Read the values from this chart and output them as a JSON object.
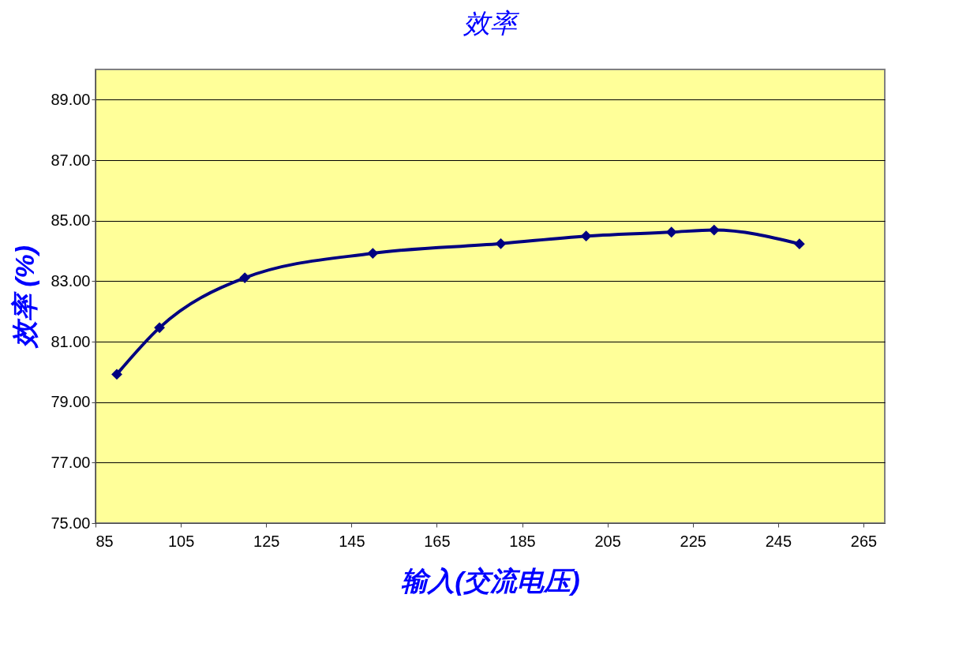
{
  "chart_data": {
    "type": "line",
    "title": "效率",
    "xlabel": "输入(交流电压)",
    "ylabel": "效率 (%)",
    "x": [
      90,
      100,
      120,
      150,
      180,
      200,
      220,
      230,
      250
    ],
    "series": [
      {
        "color": "#000080",
        "values": [
          79.92,
          81.46,
          83.11,
          83.92,
          84.24,
          84.49,
          84.62,
          84.69,
          84.23
        ]
      }
    ],
    "xlim": [
      85,
      270
    ],
    "xticks": [
      85,
      105,
      125,
      145,
      165,
      185,
      205,
      225,
      245,
      265
    ],
    "ylim": [
      75,
      90
    ],
    "yticks": [
      {
        "value": 75,
        "label": "75.00"
      },
      {
        "value": 77,
        "label": "77.00"
      },
      {
        "value": 79,
        "label": "79.00"
      },
      {
        "value": 81,
        "label": "81.00"
      },
      {
        "value": 83,
        "label": "83.00"
      },
      {
        "value": 85,
        "label": "85.00"
      },
      {
        "value": 87,
        "label": "87.00"
      },
      {
        "value": 89,
        "label": "89.00"
      }
    ],
    "grid": "y",
    "marker": "diamond",
    "line_style": "solid",
    "legend": false
  }
}
